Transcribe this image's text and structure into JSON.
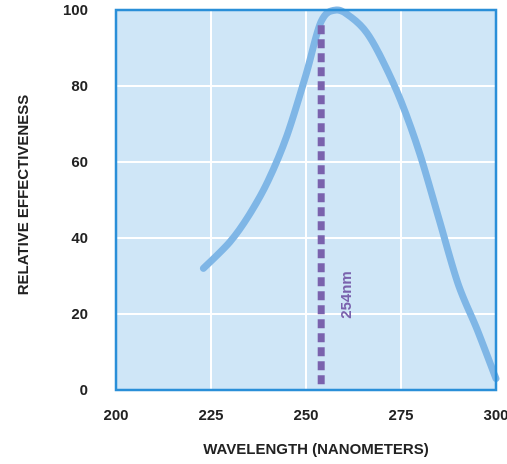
{
  "chart_data": {
    "type": "line",
    "title": "",
    "xlabel": "WAVELENGTH (NANOMETERS)",
    "ylabel": "RELATIVE  EFFECTIVENESS",
    "xlim": [
      200,
      300
    ],
    "ylim": [
      0,
      100
    ],
    "x_ticks": [
      200,
      225,
      250,
      275,
      300
    ],
    "y_ticks": [
      0,
      20,
      40,
      60,
      80,
      100
    ],
    "grid": true,
    "series": [
      {
        "x": [
          223,
          230,
          235,
          240,
          245,
          250,
          254,
          258,
          262,
          266,
          270,
          275,
          280,
          285,
          290,
          295,
          300
        ],
        "y": [
          32,
          39,
          46,
          55,
          67,
          83,
          97,
          100,
          98,
          94,
          87,
          76,
          62,
          45,
          28,
          16,
          3
        ]
      }
    ],
    "annotations": [
      {
        "x": 254,
        "label": "254nm",
        "style": "dashed-vertical"
      }
    ],
    "colors": {
      "plot_background": "#cfe6f7",
      "frame": "#2a8fd8",
      "grid": "#ffffff",
      "curve": "#7fb6e6",
      "marker_line": "#7a62ad"
    }
  }
}
